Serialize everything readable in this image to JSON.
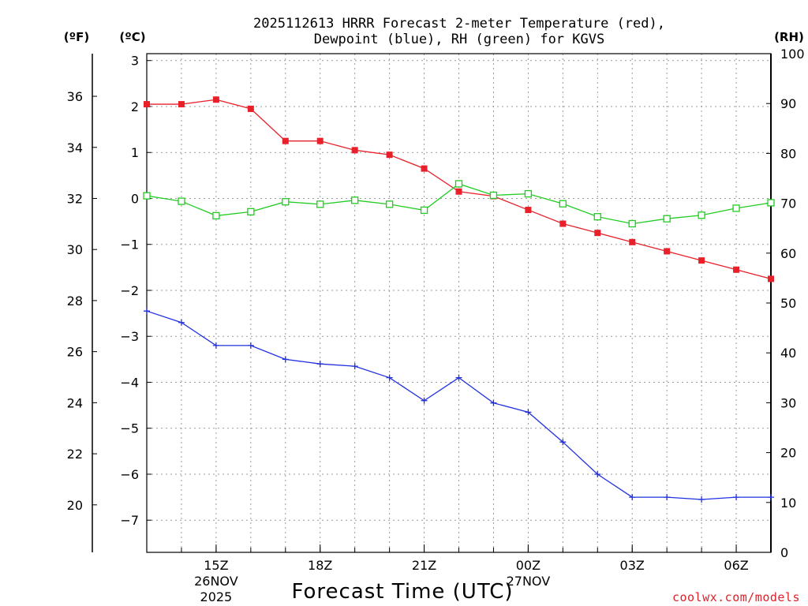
{
  "title_line1": "2025112613 HRRR Forecast 2-meter Temperature (red),",
  "title_line2": "Dewpoint (blue), RH (green) for KGVS",
  "unit_f": "(ºF)",
  "unit_c": "(ºC)",
  "unit_rh": "(RH)",
  "x_axis_title": "Forecast Time (UTC)",
  "credit": "coolwx.com/models",
  "colors": {
    "temperature": "#e8202a",
    "dewpoint": "#2030e0",
    "rh": "#20cc20"
  },
  "chart_data": {
    "type": "line",
    "title": "2025112613 HRRR Forecast 2-meter Temperature (red), Dewpoint (blue), RH (green) for KGVS",
    "xlabel": "Forecast Time (UTC)",
    "x": [
      13,
      14,
      15,
      16,
      17,
      18,
      19,
      20,
      21,
      22,
      23,
      24,
      25,
      26,
      27,
      28,
      29,
      30,
      31
    ],
    "x_ticks": [
      {
        "x": 15,
        "label": "15Z",
        "sub1": "26NOV",
        "sub2": "2025"
      },
      {
        "x": 18,
        "label": "18Z"
      },
      {
        "x": 21,
        "label": "21Z"
      },
      {
        "x": 24,
        "label": "00Z",
        "sub1": "27NOV"
      },
      {
        "x": 27,
        "label": "03Z"
      },
      {
        "x": 30,
        "label": "06Z"
      }
    ],
    "xlim": [
      13,
      31
    ],
    "y_left_celsius": {
      "label": "(ºC)",
      "ylim": [
        -7.7,
        3.15
      ],
      "ticks": [
        3,
        2,
        1,
        0,
        -1,
        -2,
        -3,
        -4,
        -5,
        -6,
        -7
      ],
      "tick_labels": [
        "3",
        "2",
        "1",
        "0",
        "−1",
        "−2",
        "−3",
        "−4",
        "−5",
        "−6",
        "−7"
      ]
    },
    "y_left_fahrenheit": {
      "label": "(ºF)",
      "ticks": [
        36,
        34,
        32,
        30,
        28,
        26,
        24,
        22,
        20
      ],
      "tick_labels": [
        "36",
        "34",
        "32",
        "30",
        "28",
        "26",
        "24",
        "22",
        "20"
      ]
    },
    "y_right_rh": {
      "label": "(RH)",
      "ylim": [
        0,
        100
      ],
      "ticks": [
        0,
        10,
        20,
        30,
        40,
        50,
        60,
        70,
        80,
        90,
        100
      ],
      "tick_labels": [
        "0",
        "10",
        "20",
        "30",
        "40",
        "50",
        "60",
        "70",
        "80",
        "90",
        "100"
      ]
    },
    "series": [
      {
        "name": "2-meter Temperature",
        "color": "red",
        "axis": "celsius",
        "marker": "filled-square",
        "values": [
          2.05,
          2.05,
          2.15,
          1.95,
          1.25,
          1.25,
          1.05,
          0.95,
          0.65,
          0.15,
          0.05,
          -0.25,
          -0.55,
          -0.75,
          -0.95,
          -1.15,
          -1.35,
          -1.55,
          -1.75
        ]
      },
      {
        "name": "Dewpoint",
        "color": "blue",
        "axis": "celsius",
        "marker": "plus",
        "values": [
          -2.45,
          -2.7,
          -3.2,
          -3.2,
          -3.5,
          -3.6,
          -3.65,
          -3.9,
          -4.4,
          -3.9,
          -4.45,
          -4.65,
          -5.3,
          -6.0,
          -6.5,
          -6.5,
          -6.55,
          -6.5,
          -6.5
        ]
      },
      {
        "name": "RH",
        "color": "green",
        "axis": "rh",
        "marker": "open-square",
        "values": [
          71.5,
          70.4,
          67.5,
          68.3,
          70.3,
          69.8,
          70.6,
          69.8,
          68.6,
          73.9,
          71.6,
          71.9,
          69.9,
          67.3,
          65.9,
          66.9,
          67.6,
          69.0,
          70.1
        ]
      }
    ]
  }
}
